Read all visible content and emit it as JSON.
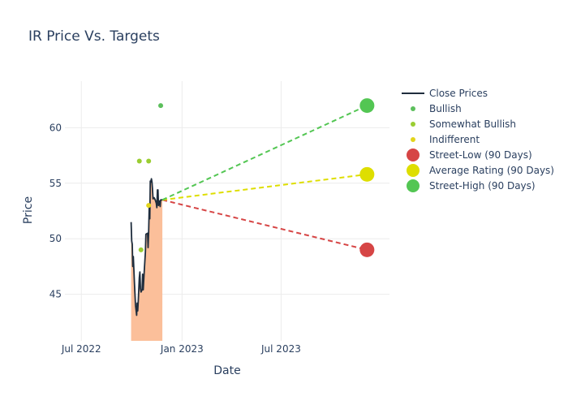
{
  "chart_data": {
    "type": "line",
    "title": "IR Price Vs. Targets",
    "xlabel": "Date",
    "ylabel": "Price",
    "x_ticks": [
      {
        "date": "2022-07-01",
        "label": "Jul 2022"
      },
      {
        "date": "2023-01-01",
        "label": "Jan 2023"
      },
      {
        "date": "2023-07-01",
        "label": "Jul 2023"
      }
    ],
    "y_ticks": [
      45,
      50,
      55,
      60
    ],
    "xlim": [
      "2022-06-01",
      "2024-01-15"
    ],
    "ylim": [
      40.8,
      64.2
    ],
    "grid": true,
    "legend_position": "top-right",
    "colors": {
      "close": "#1f2d3d",
      "area": "#fbbf9a",
      "bullish": "#5cbf5c",
      "somewhat_bullish": "#9acd32",
      "indifferent": "#e3d51b",
      "street_low": "#d64545",
      "average": "#dede00",
      "street_high": "#53c653",
      "text": "#2a3f5f",
      "grid": "#ececec"
    },
    "series": [
      {
        "name": "Close Prices",
        "points": [
          [
            "2022-09-30",
            51.5
          ],
          [
            "2022-10-01",
            49.8
          ],
          [
            "2022-10-02",
            49.5
          ],
          [
            "2022-10-03",
            47.5
          ],
          [
            "2022-10-04",
            48.4
          ],
          [
            "2022-10-06",
            46.0
          ],
          [
            "2022-10-08",
            44.0
          ],
          [
            "2022-10-10",
            43.1
          ],
          [
            "2022-10-11",
            44.2
          ],
          [
            "2022-10-12",
            43.5
          ],
          [
            "2022-10-13",
            44.4
          ],
          [
            "2022-10-15",
            46.5
          ],
          [
            "2022-10-16",
            47.0
          ],
          [
            "2022-10-17",
            45.5
          ],
          [
            "2022-10-18",
            45.2
          ],
          [
            "2022-10-20",
            45.4
          ],
          [
            "2022-10-21",
            46.8
          ],
          [
            "2022-10-22",
            45.4
          ],
          [
            "2022-10-24",
            47.1
          ],
          [
            "2022-10-26",
            48.8
          ],
          [
            "2022-10-27",
            50.4
          ],
          [
            "2022-10-30",
            50.5
          ],
          [
            "2022-10-31",
            49.2
          ],
          [
            "2022-11-01",
            50.6
          ],
          [
            "2022-11-02",
            52.8
          ],
          [
            "2022-11-03",
            51.8
          ],
          [
            "2022-11-04",
            55.2
          ],
          [
            "2022-11-05",
            55.1
          ],
          [
            "2022-11-06",
            55.4
          ],
          [
            "2022-11-07",
            55.1
          ],
          [
            "2022-11-08",
            54.5
          ],
          [
            "2022-11-09",
            53.6
          ],
          [
            "2022-11-11",
            53.7
          ],
          [
            "2022-11-13",
            53.5
          ],
          [
            "2022-11-15",
            53.2
          ],
          [
            "2022-11-16",
            52.8
          ],
          [
            "2022-11-17",
            54.4
          ],
          [
            "2022-11-18",
            54.4
          ],
          [
            "2022-11-19",
            53.0
          ],
          [
            "2022-11-21",
            53.4
          ],
          [
            "2022-11-22",
            52.9
          ],
          [
            "2022-11-23",
            53.5
          ],
          [
            "2022-11-26",
            53.5
          ]
        ]
      },
      {
        "name": "Bullish",
        "points": [
          [
            "2022-11-23",
            62.0
          ]
        ]
      },
      {
        "name": "Somewhat Bullish",
        "points": [
          [
            "2022-10-15",
            57.0
          ],
          [
            "2022-10-18",
            49.0
          ],
          [
            "2022-11-01",
            57.0
          ]
        ]
      },
      {
        "name": "Indifferent",
        "points": [
          [
            "2022-11-01",
            53.0
          ]
        ]
      },
      {
        "name": "Street-Low (90 Days)",
        "points": [
          [
            "2023-12-05",
            49.0
          ]
        ]
      },
      {
        "name": "Average Rating (90 Days)",
        "points": [
          [
            "2023-12-05",
            55.8
          ]
        ]
      },
      {
        "name": "Street-High (90 Days)",
        "points": [
          [
            "2023-12-05",
            62.0
          ]
        ]
      }
    ],
    "target_lines": {
      "from": [
        "2022-11-26",
        53.5
      ],
      "to_date": "2023-12-05",
      "to_values": {
        "street_low": 49.0,
        "average": 55.8,
        "street_high": 62.0
      }
    },
    "legend": [
      {
        "key": "close",
        "label": "Close Prices",
        "symbol": "line"
      },
      {
        "key": "bullish",
        "label": "Bullish",
        "symbol": "small-dot"
      },
      {
        "key": "somewhat_bullish",
        "label": "Somewhat Bullish",
        "symbol": "small-dot"
      },
      {
        "key": "indifferent",
        "label": "Indifferent",
        "symbol": "small-dot"
      },
      {
        "key": "street_low",
        "label": "Street-Low (90 Days)",
        "symbol": "big-dot"
      },
      {
        "key": "average",
        "label": "Average Rating (90 Days)",
        "symbol": "big-dot"
      },
      {
        "key": "street_high",
        "label": "Street-High (90 Days)",
        "symbol": "big-dot"
      }
    ]
  }
}
